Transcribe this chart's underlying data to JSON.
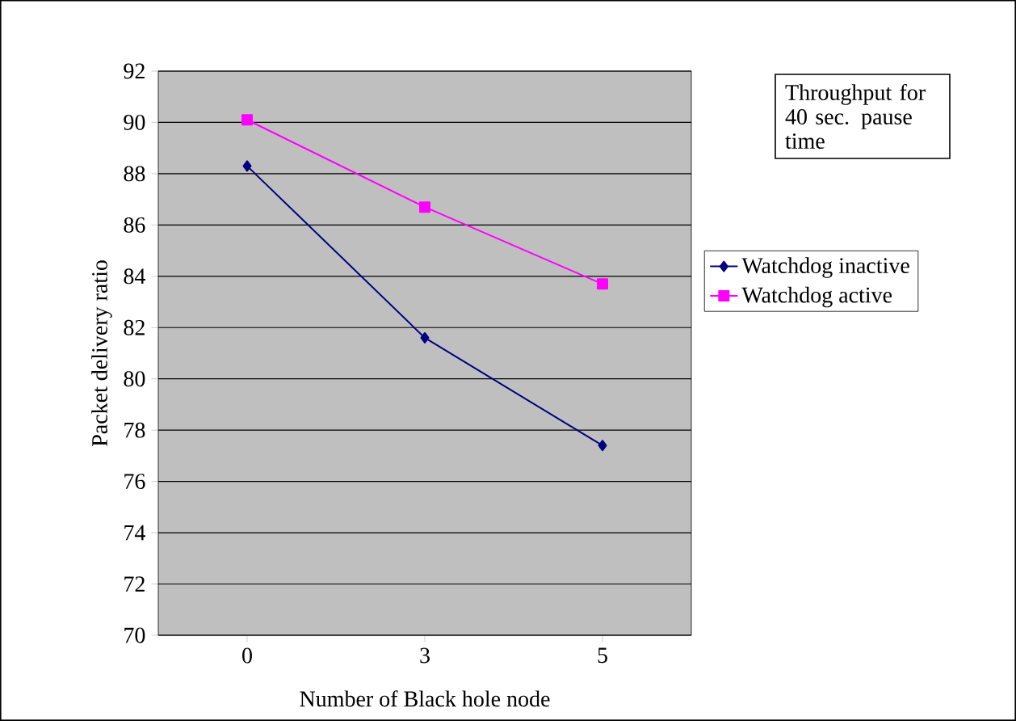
{
  "chart_data": {
    "type": "line",
    "title": "Throughput for 40 sec. pause time",
    "xlabel": "Number of Black hole node",
    "ylabel": "Packet delivery ratio",
    "categories": [
      "0",
      "3",
      "5"
    ],
    "series": [
      {
        "name": "Watchdog inactive",
        "color": "#000080",
        "marker": "diamond",
        "values": [
          88.3,
          81.6,
          77.4
        ]
      },
      {
        "name": "Watchdog active",
        "color": "#ff00ff",
        "marker": "square",
        "values": [
          90.1,
          86.7,
          83.7
        ]
      }
    ],
    "ylim": [
      70,
      92
    ],
    "yticks": [
      70,
      72,
      74,
      76,
      78,
      80,
      82,
      84,
      86,
      88,
      90,
      92
    ],
    "grid": "y",
    "legend": "right"
  }
}
